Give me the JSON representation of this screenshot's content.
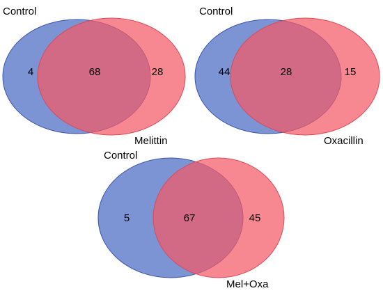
{
  "diagrams": [
    {
      "left_label": "Control",
      "right_label": "Melittin",
      "left_only": "4",
      "overlap": "68",
      "right_only": "28"
    },
    {
      "left_label": "Control",
      "right_label": "Oxacillin",
      "left_only": "44",
      "overlap": "28",
      "right_only": "15"
    },
    {
      "left_label": "Control",
      "right_label": "Mel+Oxa",
      "left_only": "5",
      "overlap": "67",
      "right_only": "45"
    }
  ],
  "colors": {
    "left_fill": "#4a6ac4",
    "right_fill": "#f45a66",
    "left_stroke": "#3b54a6",
    "right_stroke": "#d94a56"
  }
}
